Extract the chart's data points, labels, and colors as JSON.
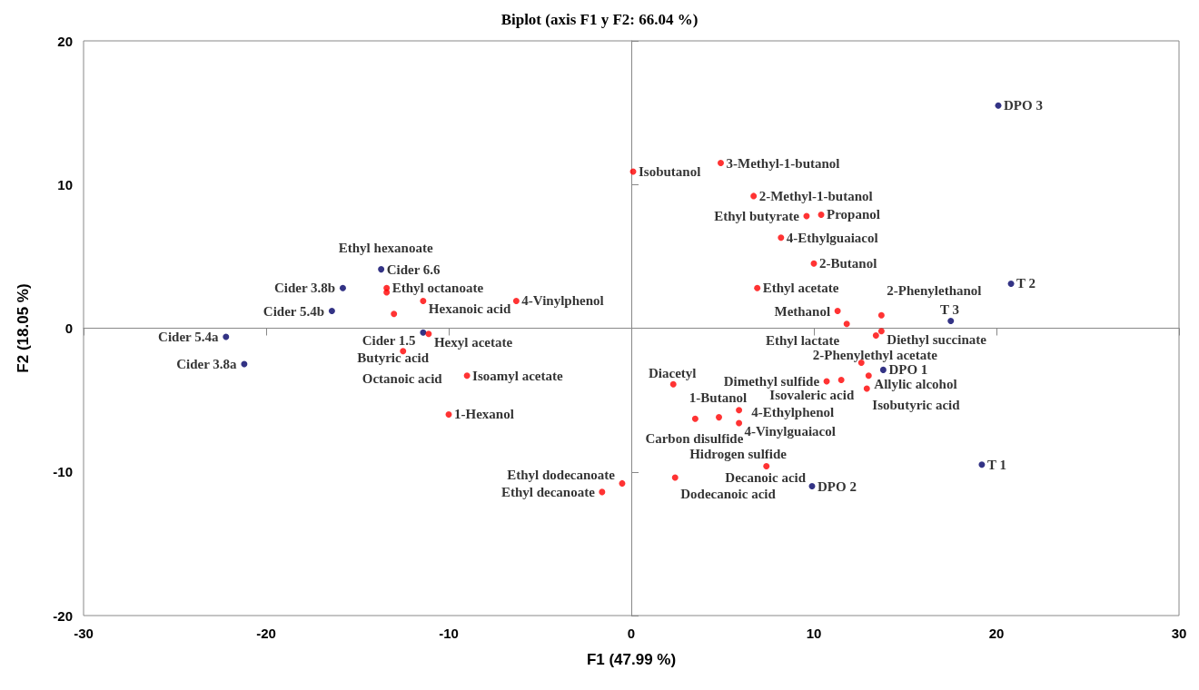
{
  "chart_data": {
    "type": "scatter",
    "title": "Biplot (axis F1 y F2: 66.04 %)",
    "xlabel": "F1 (47.99 %)",
    "ylabel": "F2 (18.05 %)",
    "xlim": [
      -30,
      30
    ],
    "xticks": [
      -30,
      -20,
      -10,
      0,
      10,
      20,
      30
    ],
    "ylim": [
      -20,
      20
    ],
    "yticks": [
      -20,
      -10,
      0,
      10,
      20
    ],
    "marker": "circle",
    "series": [
      {
        "color": "#000066",
        "x": [
          -13.7,
          -15.8,
          -16.4,
          -22.2,
          -21.2,
          -11.4,
          20.1,
          20.8,
          17.5,
          13.8,
          19.2,
          9.9
        ],
        "values": [
          4.1,
          2.8,
          1.2,
          -0.6,
          -2.5,
          -0.3,
          15.5,
          3.1,
          0.5,
          -2.9,
          -9.5,
          -11.0
        ]
      },
      {
        "color": "#ff0000",
        "x": [
          -13.4,
          -13.4,
          -11.4,
          -6.3,
          -13.0,
          -11.1,
          -12.5,
          -9.0,
          -10.0,
          -0.5,
          -1.6,
          0.1,
          4.9,
          6.7,
          9.6,
          10.4,
          8.2,
          10.0,
          6.9,
          11.3,
          13.7,
          11.8,
          13.7,
          13.4,
          12.6,
          13.0,
          12.9,
          11.5,
          10.7,
          2.3,
          4.8,
          3.5,
          5.9,
          5.9,
          7.4,
          2.4
        ],
        "values": [
          2.8,
          2.5,
          1.9,
          1.9,
          1.0,
          -0.4,
          -1.6,
          -3.3,
          -6.0,
          -10.8,
          -11.4,
          10.9,
          11.5,
          9.2,
          7.8,
          7.9,
          6.3,
          4.5,
          2.8,
          1.2,
          0.9,
          0.3,
          -0.2,
          -0.5,
          -2.4,
          -3.3,
          -4.2,
          -3.6,
          -3.7,
          -3.9,
          -6.2,
          -6.3,
          -5.7,
          -6.6,
          -9.6,
          -10.4
        ]
      }
    ],
    "annotations": [
      {
        "text": "Cider 6.6",
        "x": -13.7,
        "y": 4.1
      },
      {
        "text": "Cider 3.8b",
        "x": -15.8,
        "y": 2.8
      },
      {
        "text": "Cider 5.4b",
        "x": -16.4,
        "y": 1.2
      },
      {
        "text": "Cider 5.4a",
        "x": -22.2,
        "y": -0.6
      },
      {
        "text": "Cider 3.8a",
        "x": -21.2,
        "y": -2.5
      },
      {
        "text": "Cider 1.5",
        "x": -11.4,
        "y": -0.3
      },
      {
        "text": "DPO 3",
        "x": 20.1,
        "y": 15.5
      },
      {
        "text": "T 2",
        "x": 20.8,
        "y": 3.1
      },
      {
        "text": "T 3",
        "x": 17.5,
        "y": 0.5
      },
      {
        "text": "DPO 1",
        "x": 13.8,
        "y": -2.9
      },
      {
        "text": "T 1",
        "x": 19.2,
        "y": -9.5
      },
      {
        "text": "DPO 2",
        "x": 9.9,
        "y": -11.0
      },
      {
        "text": "Ethyl octanoate",
        "x": -13.4,
        "y": 2.8
      },
      {
        "text": "Ethyl hexanoate",
        "x": -13.4,
        "y": 2.5
      },
      {
        "text": "Hexanoic acid",
        "x": -11.4,
        "y": 1.9
      },
      {
        "text": "4-Vinylphenol",
        "x": -6.3,
        "y": 1.9
      },
      {
        "text": "Butyric acid",
        "x": -13.0,
        "y": 1.0
      },
      {
        "text": "Hexyl acetate",
        "x": -11.1,
        "y": -0.4
      },
      {
        "text": "Octanoic acid",
        "x": -12.5,
        "y": -1.6
      },
      {
        "text": "Isoamyl acetate",
        "x": -9.0,
        "y": -3.3
      },
      {
        "text": "1-Hexanol",
        "x": -10.0,
        "y": -6.0
      },
      {
        "text": "Ethyl dodecanoate",
        "x": -0.5,
        "y": -10.8
      },
      {
        "text": "Ethyl decanoate",
        "x": -1.6,
        "y": -11.4
      },
      {
        "text": "Isobutanol",
        "x": 0.1,
        "y": 10.9
      },
      {
        "text": "3-Methyl-1-butanol",
        "x": 4.9,
        "y": 11.5
      },
      {
        "text": "2-Methyl-1-butanol",
        "x": 6.7,
        "y": 9.2
      },
      {
        "text": "Ethyl butyrate",
        "x": 9.6,
        "y": 7.8
      },
      {
        "text": "Propanol",
        "x": 10.4,
        "y": 7.9
      },
      {
        "text": "4-Ethylguaiacol",
        "x": 8.2,
        "y": 6.3
      },
      {
        "text": "2-Butanol",
        "x": 10.0,
        "y": 4.5
      },
      {
        "text": "Ethyl acetate",
        "x": 6.9,
        "y": 2.8
      },
      {
        "text": "Methanol",
        "x": 11.3,
        "y": 1.2
      },
      {
        "text": "2-Phenylethanol",
        "x": 13.7,
        "y": 0.9
      },
      {
        "text": "Ethyl lactate",
        "x": 11.8,
        "y": 0.3
      },
      {
        "text": "Diethyl succinate",
        "x": 13.7,
        "y": -0.2
      },
      {
        "text": "2-Phenylethyl acetate",
        "x": 13.4,
        "y": -0.5
      },
      {
        "text": "Isovaleric acid",
        "x": 12.6,
        "y": -2.4
      },
      {
        "text": "Allylic alcohol",
        "x": 13.0,
        "y": -3.3
      },
      {
        "text": "Isobutyric acid",
        "x": 12.9,
        "y": -4.2
      },
      {
        "text": "4-Ethylphenol",
        "x": 11.5,
        "y": -3.6
      },
      {
        "text": "Dimethyl sulfide",
        "x": 10.7,
        "y": -3.7
      },
      {
        "text": "Diacetyl",
        "x": 2.3,
        "y": -3.9
      },
      {
        "text": "1-Butanol",
        "x": 4.8,
        "y": -6.2
      },
      {
        "text": "Carbon disulfide",
        "x": 3.5,
        "y": -6.3
      },
      {
        "text": "Hidrogen sulfide",
        "x": 5.9,
        "y": -5.7
      },
      {
        "text": "4-Vinylguaiacol",
        "x": 5.9,
        "y": -6.6
      },
      {
        "text": "Decanoic acid",
        "x": 7.4,
        "y": -9.6
      },
      {
        "text": "Dodecanoic acid",
        "x": 2.4,
        "y": -10.4
      }
    ]
  }
}
